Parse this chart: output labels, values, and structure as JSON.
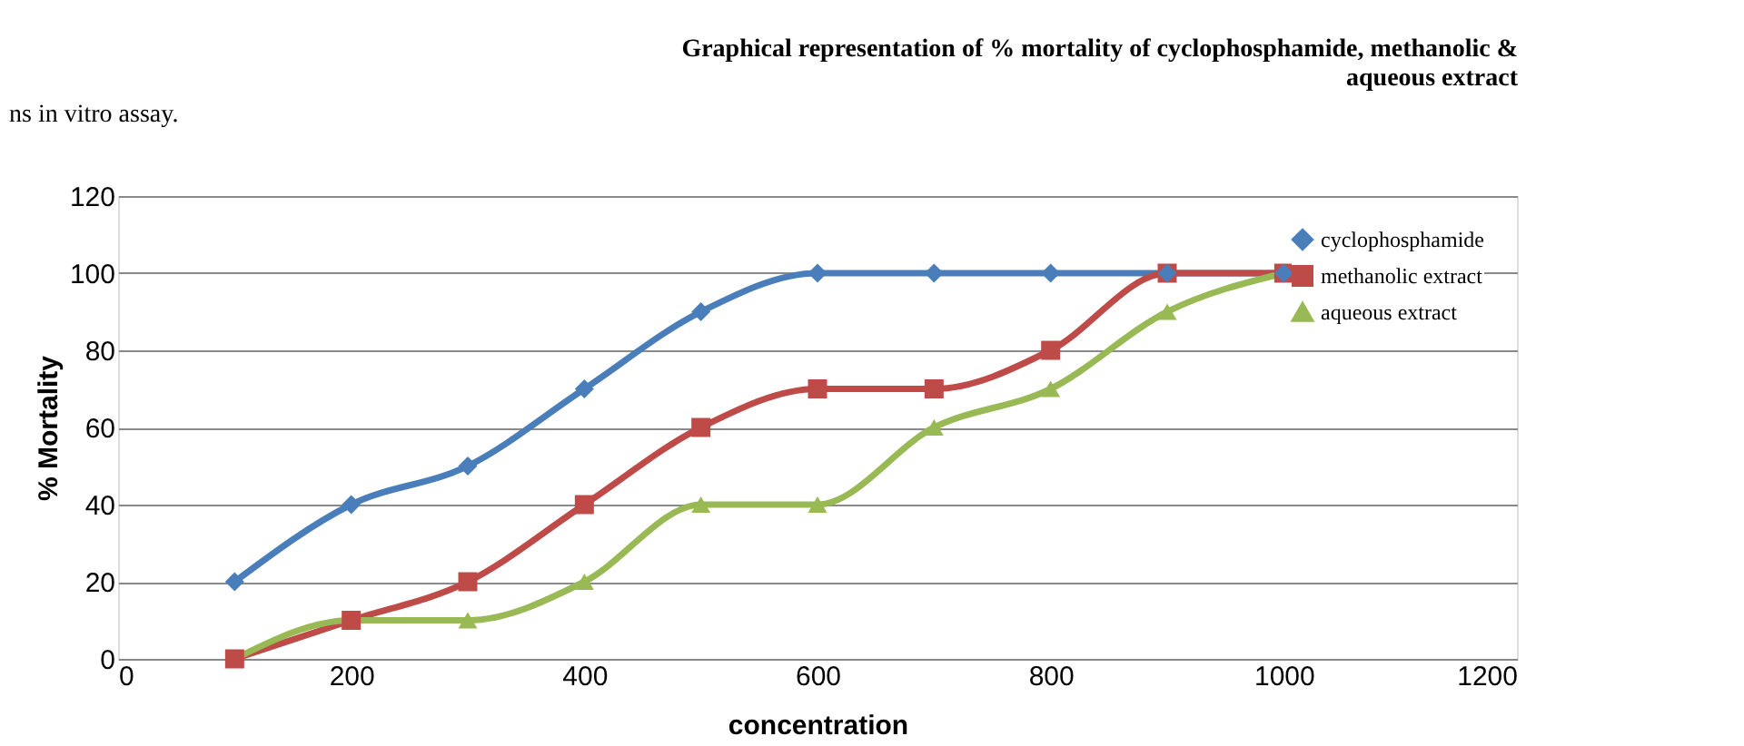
{
  "chart_data": {
    "type": "line",
    "title": [
      "Graphical representation of % mortality of cyclophosphamide, methanolic &",
      "aqueous extract"
    ],
    "xlabel": "concentration",
    "ylabel": "% Mortality",
    "x": [
      100,
      200,
      300,
      400,
      500,
      600,
      700,
      800,
      900,
      1000
    ],
    "series": [
      {
        "name": "cyclophosphamide",
        "color": "#4a7ebb",
        "marker": "diamond",
        "values": [
          20,
          40,
          50,
          70,
          90,
          100,
          100,
          100,
          100,
          100
        ]
      },
      {
        "name": "methanolic extract",
        "color": "#be4b48",
        "marker": "square",
        "values": [
          0,
          10,
          20,
          40,
          60,
          70,
          70,
          80,
          100,
          100
        ]
      },
      {
        "name": "aqueous extract",
        "color": "#98b954",
        "marker": "triangle",
        "values": [
          0,
          10,
          10,
          20,
          40,
          40,
          60,
          70,
          90,
          100
        ]
      }
    ],
    "xlim": [
      0,
      1200
    ],
    "xticks": [
      0,
      200,
      400,
      600,
      800,
      1000,
      1200
    ],
    "ylim": [
      0,
      120
    ],
    "yticks": [
      0,
      20,
      40,
      60,
      80,
      100,
      120
    ],
    "grid": "y",
    "legend": "top right",
    "line_style": "solid",
    "annotations": [
      "ns in vitro assay."
    ]
  }
}
